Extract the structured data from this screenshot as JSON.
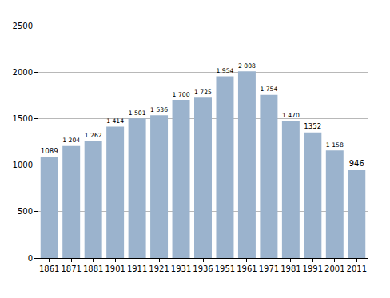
{
  "chart_data": {
    "type": "bar",
    "categories": [
      "1861",
      "1871",
      "1881",
      "1901",
      "1911",
      "1921",
      "1931",
      "1936",
      "1951",
      "1961",
      "1971",
      "1981",
      "1991",
      "2001",
      "2011"
    ],
    "values": [
      1089,
      1204,
      1262,
      1414,
      1501,
      1536,
      1700,
      1725,
      1954,
      2008,
      1754,
      1470,
      1352,
      1158,
      946
    ],
    "value_labels": [
      "1089",
      "1 204",
      "1 262",
      "1 414",
      "1 501",
      "1 536",
      "1 700",
      "1 725",
      "1 954",
      "2 008",
      "1 754",
      "1 470",
      "1352",
      "1 158",
      "946"
    ],
    "color": "#9bb3cd",
    "ylim": [
      0,
      2500
    ],
    "yticks": [
      0,
      500,
      1000,
      1500,
      2000,
      2500
    ],
    "grid": true,
    "data_labels": true
  }
}
